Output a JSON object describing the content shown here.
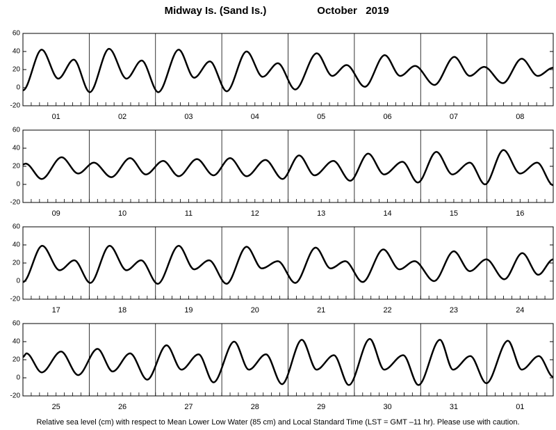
{
  "header": {
    "station": "Midway Is. (Sand Is.)",
    "period": "October   2019"
  },
  "footnote": "Relative sea level (cm) with respect to Mean Lower Low Water (85 cm) and Local Standard Time (LST = GMT –11 hr). Please use with caution.",
  "chart_data": [
    {
      "type": "line",
      "color": "#000000",
      "xlim": [
        0,
        192
      ],
      "ylim": [
        -20,
        60
      ],
      "yticks": [
        -20,
        0,
        20,
        40,
        60
      ],
      "xticks": [
        0,
        24,
        48,
        72,
        96,
        120,
        144,
        168,
        192
      ],
      "minor_xtick_interval": 3,
      "categories": [
        "01",
        "02",
        "03",
        "04",
        "05",
        "06",
        "07",
        "08"
      ],
      "x": [
        0,
        6.8,
        12.8,
        18.4,
        24.2,
        31.2,
        37.5,
        43,
        49,
        56.4,
        62,
        67.7,
        73.8,
        81,
        86.8,
        92.3,
        98.6,
        106.4,
        112,
        117.2,
        123.8,
        131,
        136.6,
        142,
        149,
        156.2,
        161.8,
        167,
        173.8,
        180.6,
        186.4,
        192
      ],
      "values": [
        -3,
        42,
        10,
        31,
        -5,
        43,
        10,
        30,
        -5,
        42,
        11,
        29,
        -4,
        40,
        12,
        27,
        -2,
        38,
        13,
        25,
        1,
        36,
        13,
        24,
        3,
        34,
        13,
        23,
        5,
        32,
        13,
        22
      ]
    },
    {
      "type": "line",
      "color": "#000000",
      "xlim": [
        0,
        192
      ],
      "ylim": [
        -20,
        60
      ],
      "yticks": [
        -20,
        0,
        20,
        40,
        60
      ],
      "xticks": [
        0,
        24,
        48,
        72,
        96,
        120,
        144,
        168,
        192
      ],
      "minor_xtick_interval": 3,
      "categories": [
        "09",
        "10",
        "11",
        "12",
        "13",
        "14",
        "15",
        "16"
      ],
      "x": [
        0,
        1,
        6.8,
        14,
        20,
        25.7,
        32,
        38.8,
        44.5,
        50.8,
        56.4,
        63,
        69,
        75,
        81,
        87.8,
        94,
        100,
        105.6,
        112.4,
        118.5,
        125,
        130.8,
        137.4,
        143,
        149.7,
        155.5,
        161.8,
        167.3,
        174,
        180,
        186.2,
        192
      ],
      "values": [
        22,
        23,
        6,
        30,
        12,
        24,
        8,
        29,
        11,
        26,
        9,
        28,
        10,
        29,
        9,
        27,
        6,
        32,
        10,
        26,
        4,
        34,
        11,
        25,
        2,
        36,
        11,
        24,
        0,
        38,
        12,
        24,
        -1
      ]
    },
    {
      "type": "line",
      "color": "#000000",
      "xlim": [
        0,
        192
      ],
      "ylim": [
        -20,
        60
      ],
      "yticks": [
        -20,
        0,
        20,
        40,
        60
      ],
      "xticks": [
        0,
        24,
        48,
        72,
        96,
        120,
        144,
        168,
        192
      ],
      "minor_xtick_interval": 3,
      "categories": [
        "17",
        "18",
        "19",
        "20",
        "21",
        "22",
        "23",
        "24"
      ],
      "x": [
        0,
        7,
        13.3,
        18.6,
        24.4,
        31.4,
        37.5,
        42.8,
        48.8,
        56.4,
        62,
        67.4,
        73.7,
        81,
        86.5,
        92.3,
        98.6,
        106,
        111.4,
        116.7,
        123,
        130.5,
        136.3,
        141.8,
        148.9,
        156,
        161.8,
        167.8,
        174.3,
        180.8,
        186.6,
        192
      ],
      "values": [
        -1,
        39,
        12,
        23,
        -2,
        39,
        12,
        23,
        -3,
        39,
        13,
        23,
        -3,
        38,
        14,
        22,
        -2,
        37,
        14,
        22,
        -1,
        35,
        13,
        22,
        0,
        33,
        11,
        24,
        2,
        31,
        7,
        24
      ]
    },
    {
      "type": "line",
      "color": "#000000",
      "xlim": [
        0,
        192
      ],
      "ylim": [
        -20,
        60
      ],
      "yticks": [
        -20,
        0,
        20,
        40,
        60
      ],
      "xticks": [
        0,
        24,
        48,
        72,
        96,
        120,
        144,
        168,
        192
      ],
      "minor_xtick_interval": 3,
      "categories": [
        "25",
        "26",
        "27",
        "28",
        "29",
        "30",
        "31",
        "01"
      ],
      "x": [
        0,
        1.3,
        6.8,
        13.8,
        20,
        27,
        32.5,
        38.8,
        45,
        52,
        57.4,
        63.6,
        69,
        76.5,
        81.8,
        88,
        93.8,
        101,
        106.3,
        112.6,
        118,
        125.6,
        130.8,
        137.7,
        143.2,
        151,
        155.7,
        162,
        167.8,
        175.6,
        180.6,
        186.8,
        192
      ],
      "values": [
        23,
        27,
        6,
        29,
        3,
        32,
        7,
        27,
        -2,
        36,
        9,
        26,
        -5,
        40,
        9,
        26,
        -7,
        42,
        9,
        25,
        -8,
        43,
        9,
        25,
        -8,
        42,
        9,
        24,
        -6,
        41,
        9,
        24,
        1
      ]
    }
  ]
}
